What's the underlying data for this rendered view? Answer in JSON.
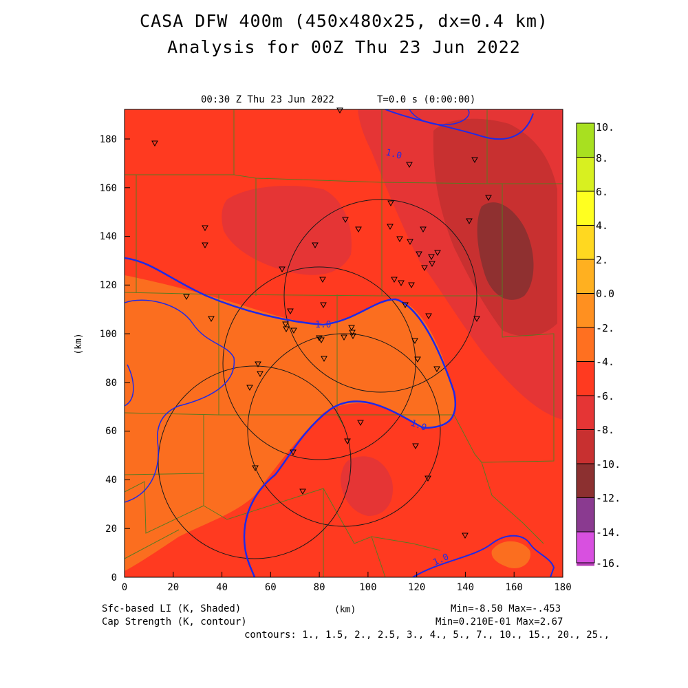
{
  "header": {
    "title_line1": "CASA DFW 400m (450x480x25, dx=0.4 km)",
    "title_line2": "Analysis for 00Z Thu 23 Jun 2022",
    "valid_time": "00:30 Z Thu 23 Jun 2022",
    "forecast_time": "T=0.0 s (0:00:00)"
  },
  "axes": {
    "x_label": "(km)",
    "y_label": "(km)",
    "x_ticks": [
      "0",
      "20",
      "40",
      "60",
      "80",
      "100",
      "120",
      "140",
      "160",
      "180"
    ],
    "y_ticks": [
      "0",
      "20",
      "40",
      "60",
      "80",
      "100",
      "120",
      "140",
      "160",
      "180"
    ]
  },
  "colorbar": {
    "labels": [
      "10.",
      "8.",
      "6.",
      "4.",
      "2.",
      "0.0",
      "-2.",
      "-4.",
      "-6.",
      "-8.",
      "-10.",
      "-12.",
      "-14.",
      "-16."
    ],
    "colors": [
      "#a8e020",
      "#d8f020",
      "#ffff20",
      "#ffd820",
      "#ffb020",
      "#ff9020",
      "#ff7020",
      "#ff3a20",
      "#e53535",
      "#c83030",
      "#8c3030",
      "#8a3a90",
      "#b840b8",
      "#d850e0"
    ]
  },
  "contour_labels": [
    "1.0",
    "1.0",
    "1.0",
    "1.0"
  ],
  "footer": {
    "shaded_field": "Sfc-based LI (K, Shaded)",
    "contour_field": "Cap Strength (K, contour)",
    "x_unit": "(km)",
    "shaded_minmax": "Min=-8.50 Max=-.453",
    "contour_minmax": "Min=0.210E-01 Max=2.67",
    "contour_levels": "contours: 1., 1.5, 2., 2.5, 3., 4., 5., 7., 10., 15., 20., 25.,"
  }
}
